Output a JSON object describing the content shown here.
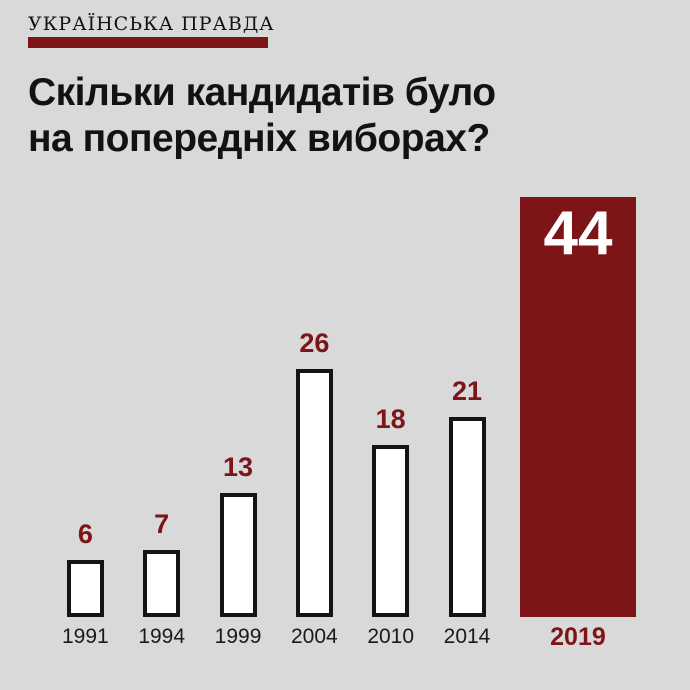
{
  "page": {
    "background": "#d9d9d9"
  },
  "brand": {
    "logo_text": "УКРАЇНСЬКА ПРАВДА",
    "accent_color": "#7d1417"
  },
  "title": {
    "line1": "Скільки кандидатів було",
    "line2": "на попередніх виборах?"
  },
  "chart_data": {
    "type": "bar",
    "title": "Скільки кандидатів було на попередніх виборах?",
    "categories": [
      "1991",
      "1994",
      "1999",
      "2004",
      "2010",
      "2014",
      "2019"
    ],
    "values": [
      6,
      7,
      13,
      26,
      18,
      21,
      44
    ],
    "highlight_category": "2019",
    "highlight_value": 44,
    "xlabel": "",
    "ylabel": "",
    "ylim": [
      0,
      44
    ],
    "grid": false,
    "legend": false,
    "bar_fill": "#ffffff",
    "bar_border_color": "#141414",
    "highlight_fill": "#7d1417",
    "value_label_color": "#7d1417",
    "highlight_value_label_color": "#ffffff",
    "tick_label_color": "#1a1a1a",
    "highlight_tick_label_color": "#7d1417"
  }
}
